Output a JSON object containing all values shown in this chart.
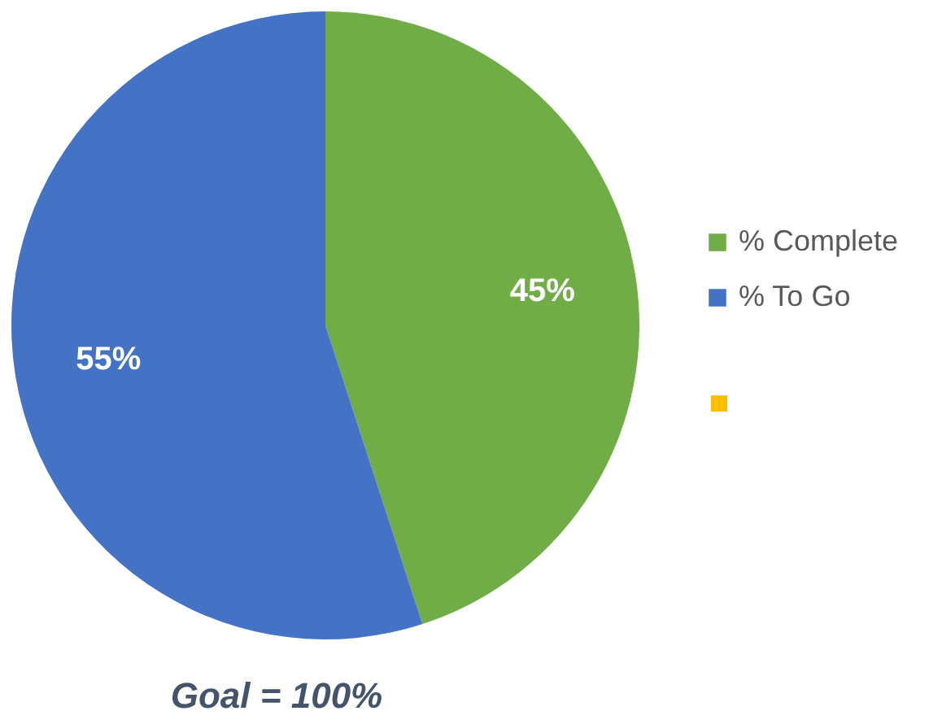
{
  "chart_data": {
    "type": "pie",
    "categories": [
      "% Complete",
      "% To Go"
    ],
    "values": [
      45,
      55
    ],
    "colors": [
      "#70ad47",
      "#4472c4"
    ],
    "value_labels": [
      "45%",
      "55%"
    ],
    "legend": "right",
    "annotations": [
      "Goal = 100%"
    ]
  }
}
